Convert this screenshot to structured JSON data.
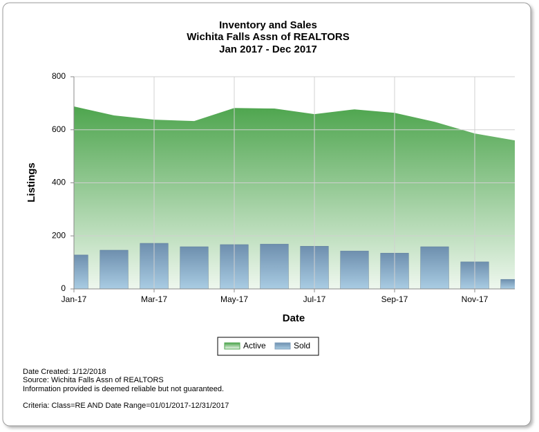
{
  "chart_data": {
    "type": "combo",
    "title_lines": [
      "Inventory and Sales",
      "Wichita Falls Assn of REALTORS",
      "Jan 2017 - Dec 2017"
    ],
    "x_label": "Date",
    "y_label": "Listings",
    "categories": [
      "Jan-17",
      null,
      "Mar-17",
      null,
      "May-17",
      null,
      "Jul-17",
      null,
      "Sep-17",
      null,
      "Nov-17",
      null
    ],
    "series": [
      {
        "name": "Active",
        "type": "area",
        "color": "#4ea54e",
        "values": [
          688,
          654,
          638,
          633,
          682,
          680,
          659,
          677,
          664,
          630,
          586,
          560
        ]
      },
      {
        "name": "Sold",
        "type": "bar",
        "color": "#7f9fbd",
        "values": [
          128,
          146,
          172,
          159,
          167,
          169,
          161,
          143,
          135,
          159,
          102,
          36
        ]
      }
    ],
    "ylim": [
      0,
      800
    ],
    "yticks": [
      0,
      200,
      400,
      600,
      800
    ],
    "grid": true,
    "legend": "bottom"
  },
  "notes": [
    "Date Created: 1/12/2018",
    "Source: Wichita Falls Assn of REALTORS",
    "Information provided is deemed reliable but not guaranteed.",
    "Criteria: Class=RE AND Date Range=01/01/2017-12/31/2017"
  ]
}
